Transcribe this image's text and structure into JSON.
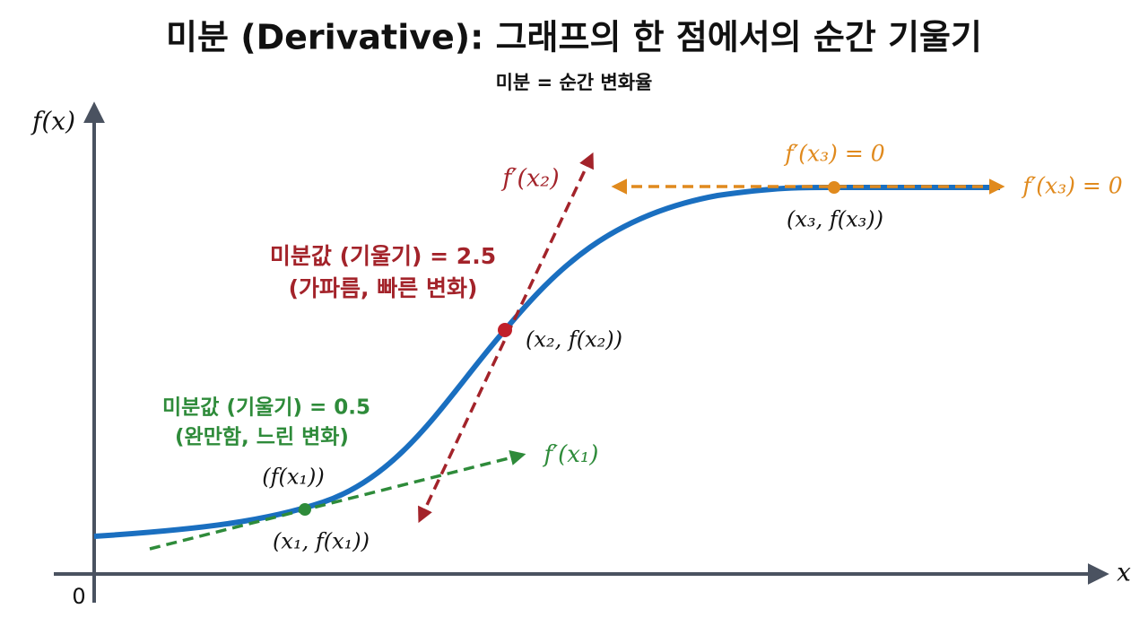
{
  "header": {
    "title": "미분 (Derivative): 그래프의 한 점에서의 순간 기울기",
    "subtitle": "미분 = 순간 변화율"
  },
  "axes": {
    "y_label": "f(x)",
    "x_label": "x",
    "origin": "0"
  },
  "points": [
    {
      "slope_text": "미분값 (기울기) = 0.5",
      "note": "(완만함, 느린 변화)",
      "tangent_label": "f′(x₁)",
      "point_label": "(x₁, f(x₁))",
      "upper_label": "(f(x₁))"
    },
    {
      "slope_text": "미분값 (기울기) = 2.5",
      "note": "(가파름, 빠른 변화)",
      "tangent_label": "f′(x₂)",
      "point_label": "(x₂, f(x₂))"
    },
    {
      "tangent_label": "f′(x₃) = 0",
      "side_label": "f′(x₃) = 0",
      "point_label": "(x₃, f(x₃))"
    }
  ]
}
